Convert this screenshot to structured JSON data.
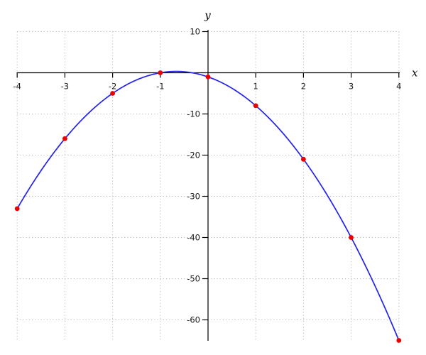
{
  "chart_data": {
    "type": "line",
    "title": "",
    "xlabel": "x",
    "ylabel": "y",
    "xlim": [
      -4,
      4
    ],
    "ylim": [
      -65,
      10
    ],
    "x_ticks": [
      -4,
      -3,
      -2,
      -1,
      1,
      2,
      3,
      4
    ],
    "y_ticks": [
      10,
      -10,
      -20,
      -30,
      -40,
      -50,
      -60
    ],
    "grid": "dotted",
    "legend": "none",
    "curve": {
      "kind": "quadratic",
      "coefficients": {
        "a": -3,
        "b": -4,
        "c": -1
      },
      "x_range": [
        -4,
        4
      ],
      "vertex": {
        "x": -0.667,
        "y": 0.333
      }
    },
    "points": [
      {
        "x": -4,
        "y": -33
      },
      {
        "x": -3,
        "y": -16
      },
      {
        "x": -2,
        "y": -5
      },
      {
        "x": -1,
        "y": 0
      },
      {
        "x": 0,
        "y": -1
      },
      {
        "x": 1,
        "y": -8
      },
      {
        "x": 2,
        "y": -21
      },
      {
        "x": 3,
        "y": -40
      },
      {
        "x": 4,
        "y": -65
      }
    ],
    "colors": {
      "curve": "#2222ee",
      "points": "#ee0000",
      "axis": "#000000",
      "grid": "#b8b8b8",
      "tick_label": "#1a1a1a"
    }
  }
}
